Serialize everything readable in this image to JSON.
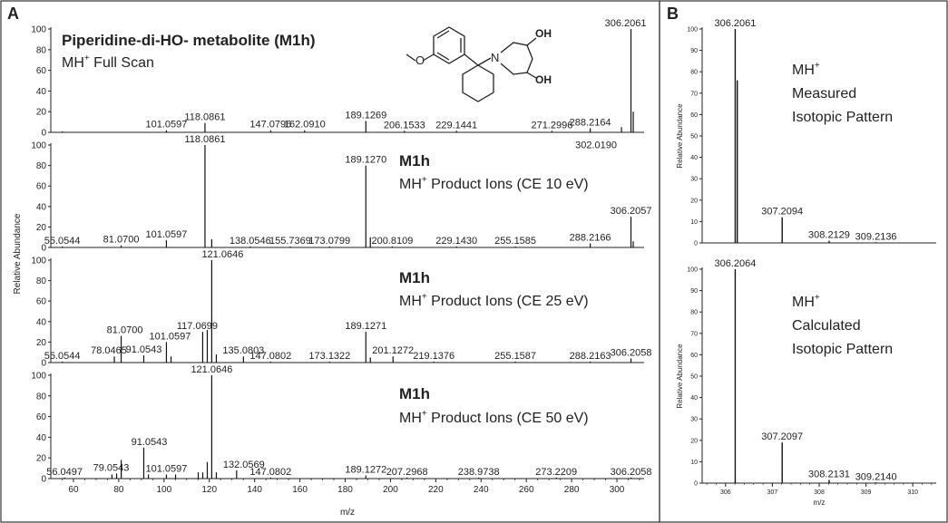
{
  "panels": {
    "a_letter": "A",
    "b_letter": "B"
  },
  "chart_data": [
    {
      "type": "bar",
      "panel": "A",
      "id": "a1",
      "title": "Piperidine-di-HO- metabolite (M1h)",
      "subtitle_main": "MH",
      "subtitle_sup": "+",
      "subtitle_rest": " Full Scan",
      "ylabel": "",
      "xlabel": "",
      "xlim": [
        50,
        312
      ],
      "ylim": [
        0,
        100
      ],
      "yticks": [
        "0",
        "20",
        "40",
        "60",
        "80",
        "100"
      ],
      "peaks": [
        {
          "x": 55.1,
          "y": 0.8
        },
        {
          "x": 101.0597,
          "y": 2,
          "label": "101.0597"
        },
        {
          "x": 118.0861,
          "y": 9,
          "label": "118.0861"
        },
        {
          "x": 147.0796,
          "y": 2,
          "label": "147.0796"
        },
        {
          "x": 162.091,
          "y": 2,
          "label": "162.0910"
        },
        {
          "x": 189.1269,
          "y": 11,
          "label": "189.1269"
        },
        {
          "x": 206.1533,
          "y": 1.5,
          "label": "206.1533"
        },
        {
          "x": 229.1441,
          "y": 1.5,
          "label": "229.1441"
        },
        {
          "x": 271.2996,
          "y": 1.5,
          "label": "271.2996"
        },
        {
          "x": 288.2164,
          "y": 4,
          "label": "288.2164"
        },
        {
          "x": 302.019,
          "y": 5,
          "label": "302.0190"
        },
        {
          "x": 306.2061,
          "y": 100,
          "label": "306.2061"
        },
        {
          "x": 307.2094,
          "y": 20
        }
      ]
    },
    {
      "type": "bar",
      "panel": "A",
      "id": "a2",
      "title": "M1h",
      "subtitle_main": "MH",
      "subtitle_sup": "+",
      "subtitle_rest": " Product Ions (CE 10 eV)",
      "ylabel": "",
      "xlabel": "",
      "xlim": [
        50,
        312
      ],
      "ylim": [
        0,
        100
      ],
      "yticks": [
        "0",
        "20",
        "40",
        "60",
        "80",
        "100"
      ],
      "peaks": [
        {
          "x": 55.0544,
          "y": 1,
          "label": "55.0544"
        },
        {
          "x": 81.07,
          "y": 2,
          "label": "81.0700"
        },
        {
          "x": 101.0597,
          "y": 7,
          "label": "101.0597"
        },
        {
          "x": 118.0861,
          "y": 100,
          "label": "118.0861"
        },
        {
          "x": 121.0646,
          "y": 8
        },
        {
          "x": 138.0546,
          "y": 1,
          "label": "138.0546"
        },
        {
          "x": 155.7369,
          "y": 1,
          "label": "155.7369"
        },
        {
          "x": 173.0799,
          "y": 1,
          "label": "173.0799"
        },
        {
          "x": 189.127,
          "y": 80,
          "label": "189.1270"
        },
        {
          "x": 191.1,
          "y": 10
        },
        {
          "x": 200.8109,
          "y": 1,
          "label": "200.8109"
        },
        {
          "x": 229.143,
          "y": 1,
          "label": "229.1430"
        },
        {
          "x": 255.1585,
          "y": 1,
          "label": "255.1585"
        },
        {
          "x": 288.2166,
          "y": 4,
          "label": "288.2166"
        },
        {
          "x": 306.2057,
          "y": 30,
          "label": "306.2057"
        },
        {
          "x": 307.2,
          "y": 6
        }
      ]
    },
    {
      "type": "bar",
      "panel": "A",
      "id": "a3",
      "title": "M1h",
      "subtitle_main": "MH",
      "subtitle_sup": "+",
      "subtitle_rest": " Product Ions (CE 25 eV)",
      "ylabel": "",
      "xlabel": "",
      "xlim": [
        50,
        312
      ],
      "ylim": [
        0,
        100
      ],
      "yticks": [
        "0",
        "20",
        "40",
        "60",
        "80",
        "100"
      ],
      "peaks": [
        {
          "x": 55.0544,
          "y": 1,
          "label": "55.0544"
        },
        {
          "x": 78.0465,
          "y": 6,
          "label": "78.0465"
        },
        {
          "x": 81.07,
          "y": 26,
          "label": "81.0700"
        },
        {
          "x": 91.0543,
          "y": 7,
          "label": "91.0543"
        },
        {
          "x": 101.0597,
          "y": 20,
          "label": "101.0597"
        },
        {
          "x": 103.1,
          "y": 6
        },
        {
          "x": 117.0699,
          "y": 30,
          "label": "117.0699"
        },
        {
          "x": 119.1,
          "y": 32
        },
        {
          "x": 121.0646,
          "y": 100,
          "label": "121.0646"
        },
        {
          "x": 123.1,
          "y": 8
        },
        {
          "x": 135.0803,
          "y": 6,
          "label": "135.0803"
        },
        {
          "x": 147.0802,
          "y": 1,
          "label": "147.0802"
        },
        {
          "x": 173.1322,
          "y": 1,
          "label": "173.1322"
        },
        {
          "x": 189.1271,
          "y": 30,
          "label": "189.1271"
        },
        {
          "x": 191.1,
          "y": 5
        },
        {
          "x": 201.1272,
          "y": 6,
          "label": "201.1272"
        },
        {
          "x": 219.1376,
          "y": 1,
          "label": "219.1376"
        },
        {
          "x": 255.1587,
          "y": 1,
          "label": "255.1587"
        },
        {
          "x": 288.2163,
          "y": 1,
          "label": "288.2163"
        },
        {
          "x": 306.2058,
          "y": 4,
          "label": "306.2058"
        }
      ]
    },
    {
      "type": "bar",
      "panel": "A",
      "id": "a4",
      "title": "M1h",
      "subtitle_main": "MH",
      "subtitle_sup": "+",
      "subtitle_rest": " Product Ions (CE 50 eV)",
      "ylabel": "Relative Abundance",
      "xlabel": "m/z",
      "xlim": [
        50,
        312
      ],
      "ylim": [
        0,
        100
      ],
      "yticks": [
        "0",
        "20",
        "40",
        "60",
        "80",
        "100"
      ],
      "xticks": [
        60,
        80,
        100,
        120,
        140,
        160,
        180,
        200,
        220,
        240,
        260,
        280,
        300
      ],
      "peaks": [
        {
          "x": 56.0497,
          "y": 1,
          "label": "56.0497"
        },
        {
          "x": 77.0,
          "y": 4
        },
        {
          "x": 79.0543,
          "y": 5,
          "label": "79.0543"
        },
        {
          "x": 81.1,
          "y": 18
        },
        {
          "x": 91.0543,
          "y": 30,
          "label": "91.0543"
        },
        {
          "x": 93.1,
          "y": 4
        },
        {
          "x": 101.0597,
          "y": 4,
          "label": "101.0597"
        },
        {
          "x": 105.1,
          "y": 4
        },
        {
          "x": 115.1,
          "y": 6
        },
        {
          "x": 117.1,
          "y": 6
        },
        {
          "x": 119.1,
          "y": 16
        },
        {
          "x": 121.0646,
          "y": 100,
          "label": "121.0646"
        },
        {
          "x": 123.1,
          "y": 6
        },
        {
          "x": 132.0569,
          "y": 8,
          "label": "132.0569"
        },
        {
          "x": 147.0802,
          "y": 1,
          "label": "147.0802"
        },
        {
          "x": 189.1272,
          "y": 3,
          "label": "189.1272"
        },
        {
          "x": 207.2968,
          "y": 1,
          "label": "207.2968"
        },
        {
          "x": 238.9738,
          "y": 1,
          "label": "238.9738"
        },
        {
          "x": 273.2209,
          "y": 1,
          "label": "273.2209"
        },
        {
          "x": 306.2058,
          "y": 1,
          "label": "306.2058"
        }
      ]
    },
    {
      "type": "bar",
      "panel": "B",
      "id": "b1",
      "title": "",
      "annotation_line1_main": "MH",
      "annotation_line1_sup": "+",
      "annotation_line2": "Measured",
      "annotation_line3": "Isotopic Pattern",
      "ylabel": "Relative Abundance",
      "xlabel": "",
      "xlim": [
        305.5,
        310.5
      ],
      "ylim": [
        0,
        100
      ],
      "yticks": [
        "0",
        "10",
        "20",
        "30",
        "40",
        "50",
        "60",
        "70",
        "80",
        "90",
        "100"
      ],
      "peaks": [
        {
          "x": 306.2061,
          "y": 100,
          "label": "306.2061"
        },
        {
          "x": 306.25,
          "y": 76
        },
        {
          "x": 307.2094,
          "y": 12,
          "label": "307.2094"
        },
        {
          "x": 308.2129,
          "y": 1,
          "label": "308.2129"
        },
        {
          "x": 309.2136,
          "y": 0.3,
          "label": "309.2136"
        }
      ]
    },
    {
      "type": "bar",
      "panel": "B",
      "id": "b2",
      "title": "",
      "annotation_line1_main": "MH",
      "annotation_line1_sup": "+",
      "annotation_line2": "Calculated",
      "annotation_line3": "Isotopic Pattern",
      "ylabel": "Relative Abundance",
      "xlabel": "m/z",
      "xlim": [
        305.5,
        310.5
      ],
      "ylim": [
        0,
        100
      ],
      "yticks": [
        "0",
        "10",
        "20",
        "30",
        "40",
        "50",
        "60",
        "70",
        "80",
        "90",
        "100"
      ],
      "xticks": [
        306,
        307,
        308,
        309,
        310
      ],
      "peaks": [
        {
          "x": 306.2064,
          "y": 100,
          "label": "306.2064"
        },
        {
          "x": 307.2097,
          "y": 19,
          "label": "307.2097"
        },
        {
          "x": 308.2131,
          "y": 1.5,
          "label": "308.2131"
        },
        {
          "x": 309.214,
          "y": 0.2,
          "label": "309.2140"
        }
      ]
    }
  ],
  "molecule": {
    "atom_n": "N",
    "oh_top": "OH",
    "oh_bottom": "OH"
  }
}
